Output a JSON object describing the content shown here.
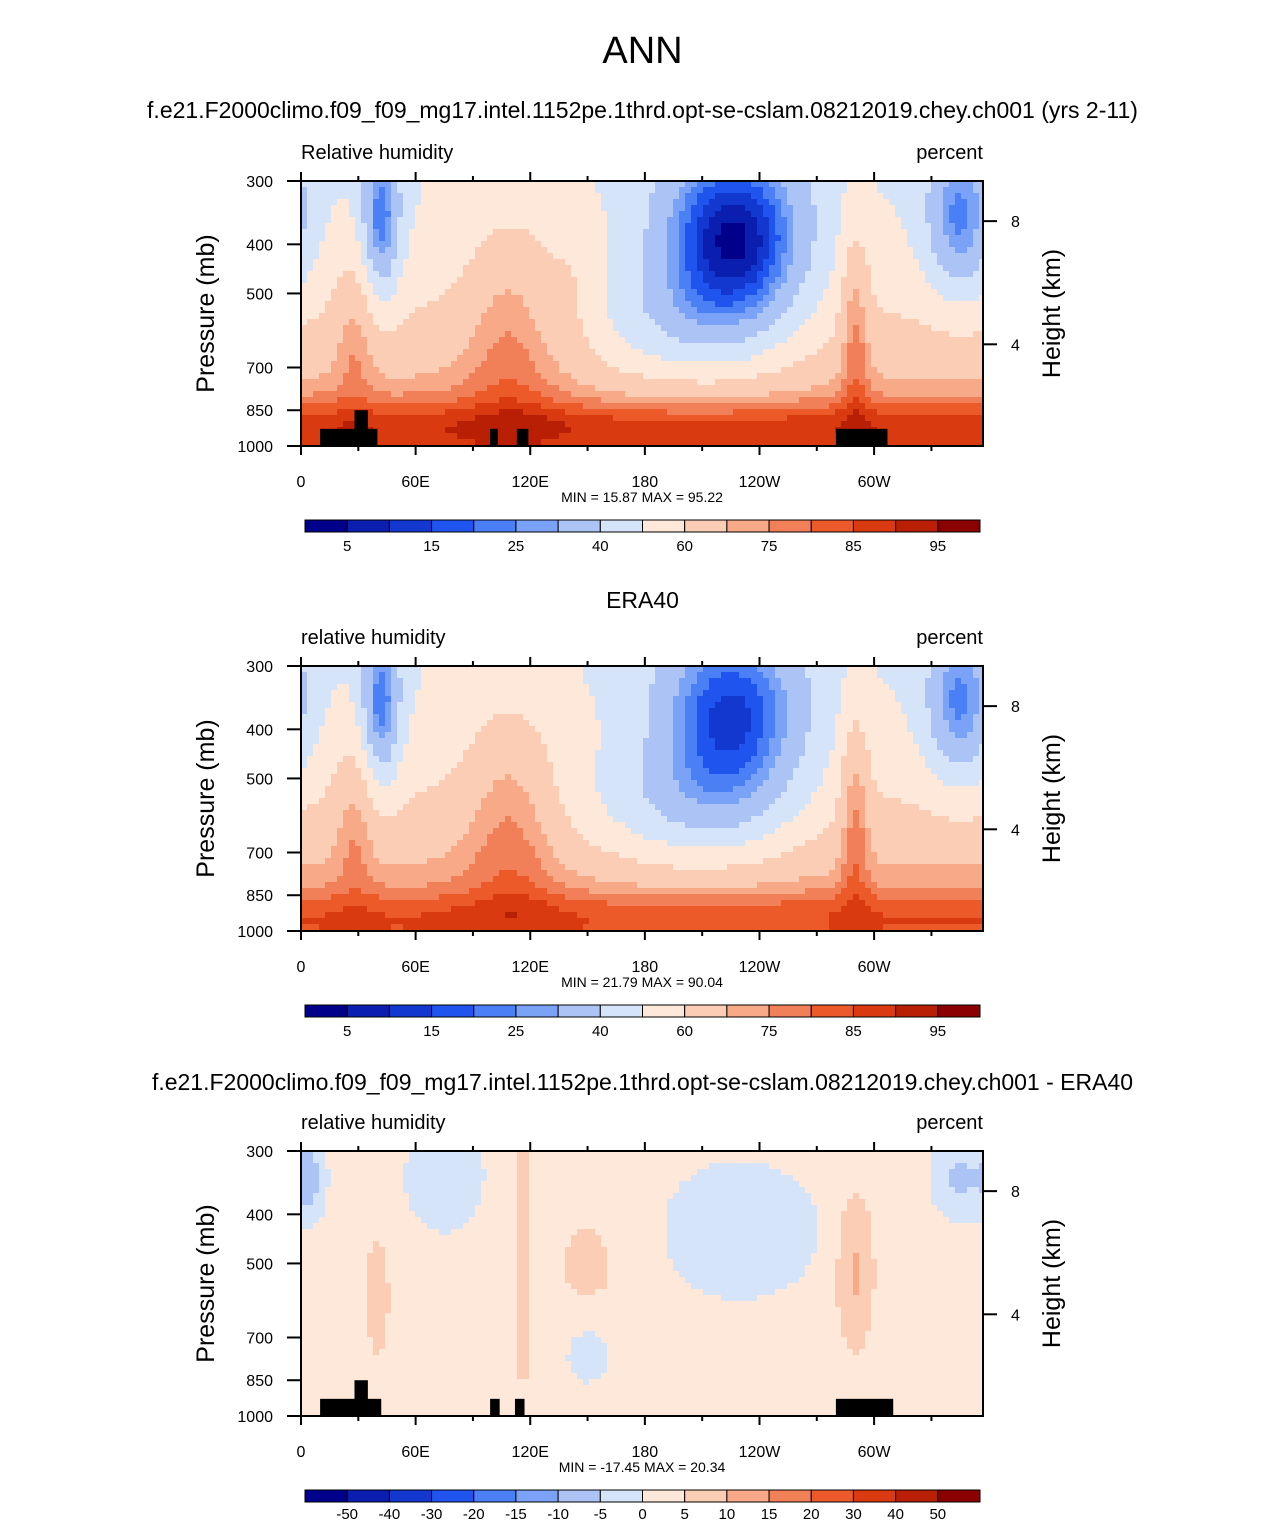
{
  "figure": {
    "title": "ANN"
  },
  "colors": {
    "frame": "#000000",
    "land_mask": "#000000",
    "palette": [
      "#00008b",
      "#0a1fb0",
      "#1238d0",
      "#1f55ee",
      "#4a7ff5",
      "#7aa2f7",
      "#abc4f5",
      "#d6e4fa",
      "#fde8d9",
      "#fbcdb4",
      "#f7a988",
      "#f17f57",
      "#ec5a2a",
      "#d93a10",
      "#b81f05",
      "#8b0000"
    ]
  },
  "chart_data": [
    {
      "type": "heatmap",
      "title": "f.e21.F2000climo.f09_f09_mg17.intel.1152pe.1thrd.opt-se-cslam.08212019.chey.ch001 (yrs 2-11)",
      "left_label": "Relative humidity",
      "right_label": "percent",
      "ylabel": "Pressure (mb)",
      "y2label": "Height (km)",
      "x_ticks": [
        {
          "lon": 0,
          "label": "0"
        },
        {
          "lon": 60,
          "label": "60E"
        },
        {
          "lon": 120,
          "label": "120E"
        },
        {
          "lon": 180,
          "label": "180"
        },
        {
          "lon": 240,
          "label": "120W"
        },
        {
          "lon": 300,
          "label": "60W"
        }
      ],
      "xlim": [
        0,
        357
      ],
      "y_ticks": [
        300,
        400,
        500,
        700,
        850,
        1000
      ],
      "ylim": [
        1000,
        300
      ],
      "y2_ticks": [
        8,
        4
      ],
      "stats": "MIN =  15.87  MAX =  95.22",
      "min": 15.87,
      "max": 95.22,
      "colorbar_labels": [
        "5",
        "15",
        "25",
        "40",
        "60",
        "75",
        "85",
        "95"
      ],
      "field": "model",
      "land": [
        {
          "lon0": 10,
          "lon1": 40,
          "p_top": 925
        },
        {
          "lon0": 28,
          "lon1": 35,
          "p_top": 850
        },
        {
          "lon0": 99,
          "lon1": 103,
          "p_top": 925
        },
        {
          "lon0": 113,
          "lon1": 119,
          "p_top": 925
        },
        {
          "lon0": 280,
          "lon1": 307,
          "p_top": 925
        }
      ]
    },
    {
      "type": "heatmap",
      "title": "ERA40",
      "left_label": "relative humidity",
      "right_label": "percent",
      "ylabel": "Pressure (mb)",
      "y2label": "Height (km)",
      "x_ticks": [
        {
          "lon": 0,
          "label": "0"
        },
        {
          "lon": 60,
          "label": "60E"
        },
        {
          "lon": 120,
          "label": "120E"
        },
        {
          "lon": 180,
          "label": "180"
        },
        {
          "lon": 240,
          "label": "120W"
        },
        {
          "lon": 300,
          "label": "60W"
        }
      ],
      "xlim": [
        0,
        357
      ],
      "y_ticks": [
        300,
        400,
        500,
        700,
        850,
        1000
      ],
      "ylim": [
        1000,
        300
      ],
      "y2_ticks": [
        8,
        4
      ],
      "stats": "MIN =  21.79  MAX =  90.04",
      "min": 21.79,
      "max": 90.04,
      "colorbar_labels": [
        "5",
        "15",
        "25",
        "40",
        "60",
        "75",
        "85",
        "95"
      ],
      "field": "obs",
      "land": []
    },
    {
      "type": "heatmap",
      "title": "f.e21.F2000climo.f09_f09_mg17.intel.1152pe.1thrd.opt-se-cslam.08212019.chey.ch001 - ERA40",
      "left_label": "relative humidity",
      "right_label": "percent",
      "ylabel": "Pressure (mb)",
      "y2label": "Height (km)",
      "x_ticks": [
        {
          "lon": 0,
          "label": "0"
        },
        {
          "lon": 60,
          "label": "60E"
        },
        {
          "lon": 120,
          "label": "120E"
        },
        {
          "lon": 180,
          "label": "180"
        },
        {
          "lon": 240,
          "label": "120W"
        },
        {
          "lon": 300,
          "label": "60W"
        }
      ],
      "xlim": [
        0,
        357
      ],
      "y_ticks": [
        300,
        400,
        500,
        700,
        850,
        1000
      ],
      "ylim": [
        1000,
        300
      ],
      "y2_ticks": [
        8,
        4
      ],
      "stats": "MIN = -17.45  MAX =  20.34",
      "min": -17.45,
      "max": 20.34,
      "colorbar_labels": [
        "-50",
        "-40",
        "-30",
        "-20",
        "-15",
        "-10",
        "-5",
        "0",
        "5",
        "10",
        "15",
        "20",
        "30",
        "40",
        "50"
      ],
      "field": "diff",
      "land": [
        {
          "lon0": 10,
          "lon1": 42,
          "p_top": 925
        },
        {
          "lon0": 28,
          "lon1": 35,
          "p_top": 850
        },
        {
          "lon0": 99,
          "lon1": 104,
          "p_top": 925
        },
        {
          "lon0": 112,
          "lon1": 117,
          "p_top": 925
        },
        {
          "lon0": 280,
          "lon1": 310,
          "p_top": 925
        }
      ]
    }
  ]
}
